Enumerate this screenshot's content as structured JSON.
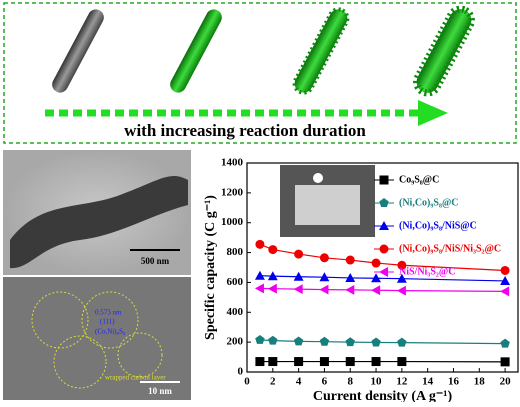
{
  "schematic": {
    "caption": "with increasing reaction duration"
  },
  "tem": {
    "scale_top": "500 nm",
    "scale_bottom": "10 nm",
    "lattice": "0.573 nm",
    "plane": "(111)",
    "phase": "(Co,Ni)₉S₈",
    "carbon": "wrapped carbon layer"
  },
  "chart_data": {
    "type": "line",
    "x_label": "Current density (A g⁻¹)",
    "y_label": "Specific capacity (C g⁻¹)",
    "x": [
      1,
      2,
      4,
      6,
      8,
      10,
      12,
      20
    ],
    "xlim": [
      0,
      21
    ],
    "xticks": [
      0,
      2,
      4,
      6,
      8,
      10,
      12,
      14,
      16,
      18,
      20
    ],
    "ylim": [
      0,
      1400
    ],
    "yticks": [
      0,
      200,
      400,
      600,
      800,
      1000,
      1200,
      1400
    ],
    "legend": "upper right",
    "series": [
      {
        "name": "Co₉S₈@C",
        "color": "#000000",
        "marker": "square",
        "values": [
          70,
          70,
          70,
          70,
          70,
          70,
          70,
          68
        ]
      },
      {
        "name": "(Ni,Co)₉S₈@C",
        "color": "#17807e",
        "marker": "pentagon",
        "values": [
          215,
          210,
          205,
          203,
          200,
          198,
          197,
          190
        ]
      },
      {
        "name": "(Ni,Co)₉S₈/NiS@C",
        "color": "#0000ee",
        "marker": "triangle-up",
        "values": [
          645,
          642,
          638,
          635,
          630,
          628,
          625,
          610
        ]
      },
      {
        "name": "(Ni,Co)₉S₈/NiS/Ni₃S₂@C",
        "color": "#ee0000",
        "marker": "circle",
        "values": [
          855,
          820,
          790,
          765,
          750,
          730,
          715,
          680
        ]
      },
      {
        "name": "NiS/Ni₃S₂@C",
        "color": "#ee00ee",
        "marker": "triangle-left",
        "values": [
          560,
          558,
          555,
          552,
          550,
          548,
          545,
          540
        ]
      }
    ]
  }
}
